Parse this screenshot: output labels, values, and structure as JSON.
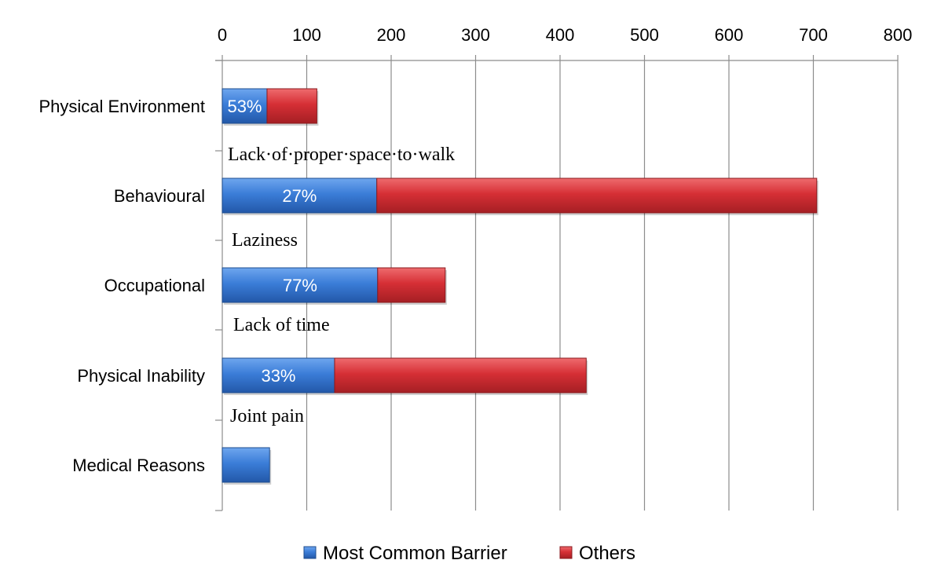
{
  "chart_data": {
    "type": "bar",
    "orientation": "horizontal",
    "stacked": true,
    "categories": [
      "Physical Environment",
      "Behavioural",
      "Occupational",
      "Physical Inability",
      "Medical Reasons"
    ],
    "series": [
      {
        "name": "Most Common Barrier",
        "values": [
          53,
          183,
          184,
          133,
          56
        ],
        "color": "#3b7dd8"
      },
      {
        "name": "Others",
        "values": [
          59,
          521,
          80,
          298,
          0
        ],
        "color": "#d62f35"
      }
    ],
    "data_labels": [
      "53%",
      "27%",
      "77%",
      "33%",
      ""
    ],
    "annotations": [
      "Lack·of·proper·space·to·walk",
      "Laziness",
      "Lack of time",
      "Joint pain"
    ],
    "xlim": [
      0,
      800
    ],
    "x_ticks": [
      "0",
      "100",
      "200",
      "300",
      "400",
      "500",
      "600",
      "700",
      "800"
    ],
    "x_axis_position": "top",
    "grid": true,
    "legend_position": "bottom"
  }
}
